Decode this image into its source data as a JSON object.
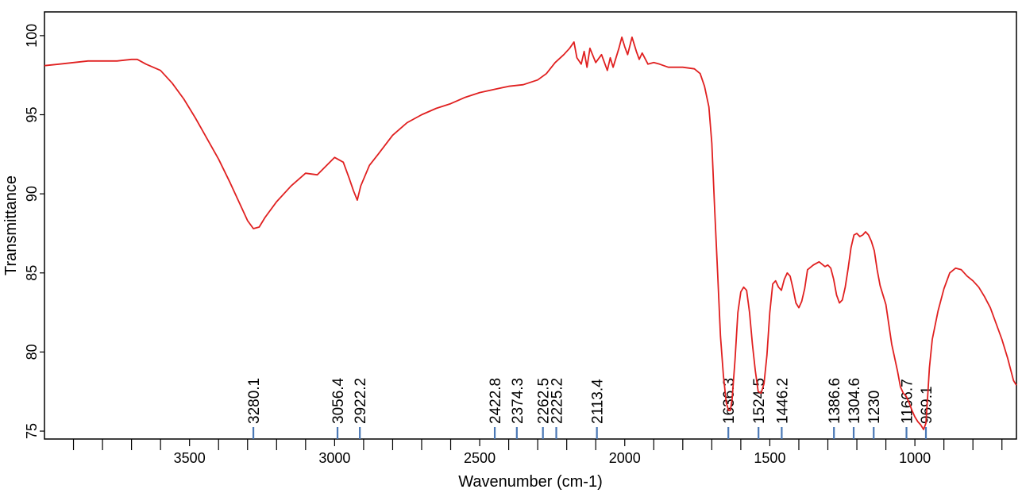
{
  "chart_data": {
    "type": "line",
    "title": "",
    "xlabel": "Wavenumber (cm-1)",
    "ylabel": "Transmittance",
    "xlim": [
      4000,
      650
    ],
    "ylim": [
      74.5,
      101.5
    ],
    "x_reversed": true,
    "grid": false,
    "line_color": "#e02020",
    "marker_color": "#4a78b5",
    "x_ticks": [
      {
        "value": 3500,
        "label": "3500"
      },
      {
        "value": 3000,
        "label": "3000"
      },
      {
        "value": 2500,
        "label": "2500"
      },
      {
        "value": 2000,
        "label": "2000"
      },
      {
        "value": 1500,
        "label": "1500"
      },
      {
        "value": 1000,
        "label": "1000"
      }
    ],
    "y_ticks": [
      {
        "value": 75,
        "label": "75"
      },
      {
        "value": 80,
        "label": "80"
      },
      {
        "value": 85,
        "label": "85"
      },
      {
        "value": 90,
        "label": "90"
      },
      {
        "value": 95,
        "label": "95"
      },
      {
        "value": 100,
        "label": "100"
      }
    ],
    "peak_labels": [
      {
        "x": 3280,
        "label": "3280.1"
      },
      {
        "x": 2990,
        "label": "3056.4"
      },
      {
        "x": 2913,
        "label": "2922.2"
      },
      {
        "x": 2448,
        "label": "2422.8"
      },
      {
        "x": 2372,
        "label": "2374.3"
      },
      {
        "x": 2282,
        "label": "2262.5"
      },
      {
        "x": 2236,
        "label": "2225.2"
      },
      {
        "x": 2096,
        "label": "2113.4"
      },
      {
        "x": 1643,
        "label": "1636.3"
      },
      {
        "x": 1539,
        "label": "1524.5"
      },
      {
        "x": 1459,
        "label": "1446.2"
      },
      {
        "x": 1279,
        "label": "1386.6"
      },
      {
        "x": 1211,
        "label": "1304.6"
      },
      {
        "x": 1142,
        "label": "1230"
      },
      {
        "x": 1029,
        "label": "1166.7"
      },
      {
        "x": 962,
        "label": "969.1"
      }
    ],
    "series": [
      {
        "x": [
          4000,
          3950,
          3900,
          3850,
          3800,
          3750,
          3700,
          3680,
          3650,
          3600,
          3560,
          3520,
          3480,
          3440,
          3400,
          3360,
          3330,
          3300,
          3280,
          3260,
          3240,
          3200,
          3150,
          3100,
          3060,
          3000,
          2970,
          2950,
          2935,
          2922,
          2910,
          2880,
          2850,
          2800,
          2750,
          2700,
          2650,
          2600,
          2550,
          2500,
          2450,
          2400,
          2350,
          2300,
          2270,
          2240,
          2210,
          2190,
          2175,
          2165,
          2150,
          2140,
          2130,
          2120,
          2100,
          2080,
          2060,
          2050,
          2040,
          2020,
          2010,
          2000,
          1990,
          1975,
          1960,
          1950,
          1940,
          1920,
          1900,
          1880,
          1850,
          1800,
          1760,
          1740,
          1725,
          1710,
          1700,
          1690,
          1680,
          1670,
          1660,
          1650,
          1642,
          1636,
          1630,
          1620,
          1610,
          1600,
          1590,
          1580,
          1570,
          1560,
          1550,
          1540,
          1530,
          1520,
          1510,
          1500,
          1490,
          1480,
          1470,
          1460,
          1450,
          1440,
          1430,
          1420,
          1410,
          1400,
          1390,
          1380,
          1370,
          1350,
          1330,
          1310,
          1300,
          1290,
          1280,
          1270,
          1260,
          1250,
          1240,
          1230,
          1220,
          1210,
          1200,
          1190,
          1180,
          1170,
          1160,
          1150,
          1140,
          1130,
          1120,
          1100,
          1080,
          1060,
          1050,
          1040,
          1030,
          1020,
          1010,
          1000,
          990,
          980,
          970,
          962,
          955,
          950,
          940,
          920,
          900,
          880,
          860,
          840,
          820,
          800,
          780,
          760,
          740,
          720,
          700,
          680,
          660,
          650
        ],
        "y": [
          98.1,
          98.2,
          98.3,
          98.4,
          98.4,
          98.4,
          98.5,
          98.5,
          98.2,
          97.8,
          97.0,
          96.0,
          94.8,
          93.5,
          92.2,
          90.7,
          89.5,
          88.3,
          87.8,
          87.9,
          88.5,
          89.5,
          90.5,
          91.3,
          91.2,
          92.3,
          92.0,
          91.0,
          90.2,
          89.6,
          90.5,
          91.8,
          92.5,
          93.7,
          94.5,
          95.0,
          95.4,
          95.7,
          96.1,
          96.4,
          96.6,
          96.8,
          96.9,
          97.2,
          97.6,
          98.3,
          98.8,
          99.2,
          99.6,
          98.6,
          98.2,
          99.0,
          98.0,
          99.2,
          98.3,
          98.8,
          97.8,
          98.6,
          98.0,
          99.2,
          99.9,
          99.3,
          98.8,
          99.9,
          99.0,
          98.5,
          98.9,
          98.2,
          98.3,
          98.2,
          98.0,
          98.0,
          97.9,
          97.6,
          96.8,
          95.5,
          93.2,
          89.0,
          85.0,
          81.0,
          78.5,
          76.8,
          76.3,
          76.3,
          77.0,
          79.5,
          82.5,
          83.8,
          84.1,
          83.9,
          82.5,
          80.5,
          78.8,
          77.5,
          77.4,
          78.0,
          79.8,
          82.5,
          84.3,
          84.5,
          84.1,
          83.9,
          84.6,
          85.0,
          84.8,
          84.0,
          83.1,
          82.8,
          83.2,
          84.0,
          85.2,
          85.5,
          85.7,
          85.4,
          85.5,
          85.3,
          84.6,
          83.6,
          83.1,
          83.3,
          84.1,
          85.3,
          86.6,
          87.4,
          87.5,
          87.3,
          87.4,
          87.6,
          87.4,
          87.0,
          86.4,
          85.2,
          84.2,
          83.0,
          80.5,
          78.8,
          77.8,
          77.4,
          77.2,
          76.8,
          76.3,
          75.9,
          75.6,
          75.4,
          75.1,
          75.5,
          77.5,
          79.0,
          80.8,
          82.6,
          84.0,
          85.0,
          85.3,
          85.2,
          84.8,
          84.5,
          84.1,
          83.5,
          82.8,
          81.8,
          80.8,
          79.6,
          78.2,
          77.9
        ]
      }
    ]
  }
}
